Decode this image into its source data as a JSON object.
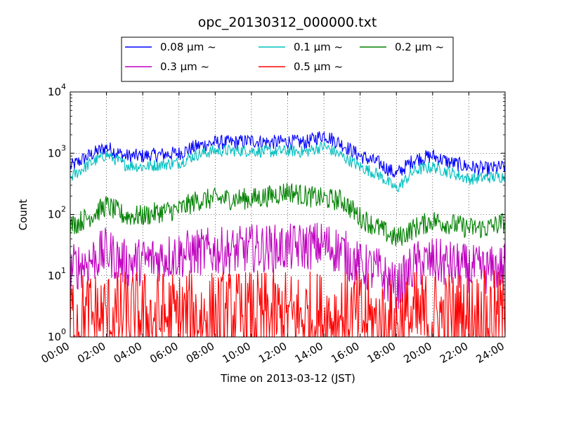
{
  "chart_data": {
    "type": "line",
    "title": "opc_20130312_000000.txt",
    "xlabel": "Time on 2013-03-12 (JST)",
    "ylabel": "Count",
    "yscale": "log",
    "xlim": [
      "2013-03-12 00:00",
      "2013-03-13 00:00"
    ],
    "ylim": [
      1,
      10000
    ],
    "grid": true,
    "legend_position": "top, above plot, 3 columns",
    "x_tick_labels": [
      "00:00",
      "02:00",
      "04:00",
      "06:00",
      "08:00",
      "10:00",
      "12:00",
      "14:00",
      "16:00",
      "18:00",
      "20:00",
      "22:00",
      "24:00"
    ],
    "x_ticks_hours": [
      0,
      2,
      4,
      6,
      8,
      10,
      12,
      14,
      16,
      18,
      20,
      22,
      24
    ],
    "y_tick_labels": [
      {
        "value": 1,
        "base": "10",
        "exp": "0"
      },
      {
        "value": 10,
        "base": "10",
        "exp": "1"
      },
      {
        "value": 100,
        "base": "10",
        "exp": "2"
      },
      {
        "value": 1000,
        "base": "10",
        "exp": "3"
      },
      {
        "value": 10000,
        "base": "10",
        "exp": "4"
      }
    ],
    "x_hours": [
      0,
      1,
      2,
      3,
      4,
      5,
      6,
      7,
      8,
      9,
      10,
      11,
      12,
      13,
      14,
      15,
      16,
      17,
      18,
      19,
      20,
      21,
      22,
      23,
      24
    ],
    "series": [
      {
        "name": "0.08 μm ~",
        "color": "#0000ff",
        "noise": 0.12,
        "values": [
          600,
          900,
          1250,
          900,
          900,
          950,
          1000,
          1300,
          1500,
          1500,
          1600,
          1500,
          1550,
          1500,
          2000,
          1400,
          900,
          700,
          450,
          800,
          900,
          700,
          600,
          550,
          600
        ]
      },
      {
        "name": "0.1 μm ~",
        "color": "#00bfbf",
        "noise": 0.1,
        "values": [
          400,
          650,
          950,
          650,
          600,
          650,
          700,
          950,
          1100,
          1100,
          1100,
          1050,
          1100,
          1050,
          1300,
          900,
          600,
          450,
          260,
          520,
          600,
          480,
          380,
          400,
          420
        ]
      },
      {
        "name": "0.2 μm ~",
        "color": "#008000",
        "noise": 0.18,
        "values": [
          65,
          90,
          140,
          95,
          95,
          110,
          120,
          170,
          180,
          180,
          180,
          200,
          240,
          200,
          180,
          170,
          90,
          60,
          40,
          60,
          80,
          70,
          60,
          60,
          75
        ]
      },
      {
        "name": "0.3 μm ~",
        "color": "#bf00bf",
        "noise": 0.4,
        "values": [
          13,
          17,
          25,
          16,
          17,
          20,
          22,
          24,
          25,
          25,
          28,
          28,
          28,
          30,
          32,
          25,
          14,
          12,
          6,
          15,
          17,
          15,
          13,
          12,
          14
        ]
      },
      {
        "name": "0.5 μm ~",
        "color": "#ff0000",
        "noise": 0.8,
        "values": [
          2,
          2,
          2,
          2,
          2,
          2,
          2,
          2,
          2,
          2,
          2,
          2,
          2,
          2,
          2,
          2,
          2,
          1.5,
          1.5,
          2,
          2,
          2,
          2,
          2,
          2
        ]
      }
    ]
  }
}
